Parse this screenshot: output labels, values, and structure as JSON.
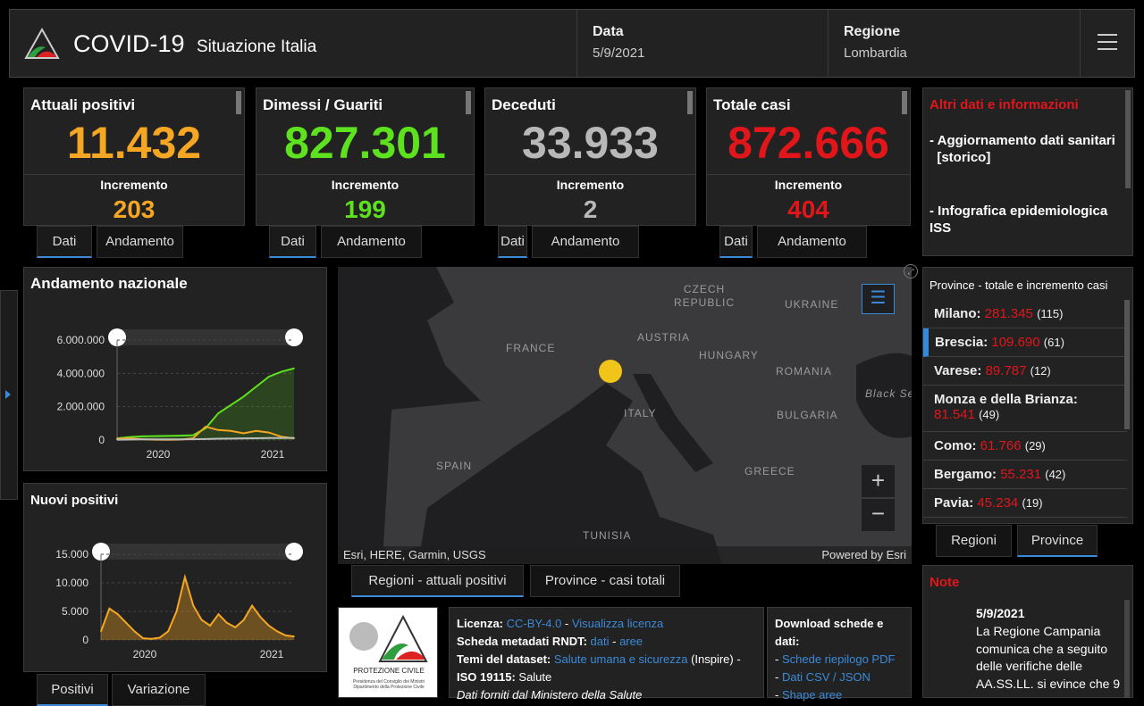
{
  "header": {
    "title": "COVID-19",
    "subtitle": "Situazione Italia",
    "date_label": "Data",
    "date_value": "5/9/2021",
    "region_label": "Regione",
    "region_value": "Lombardia",
    "menu_icon": "hamburger-icon"
  },
  "cards": [
    {
      "label": "Attuali positivi",
      "value": "11.432",
      "inc_label": "Incremento",
      "inc_value": "203",
      "color": "#f5a623",
      "tabs": [
        "Dati",
        "Andamento"
      ]
    },
    {
      "label": "Dimessi / Guariti",
      "value": "827.301",
      "inc_label": "Incremento",
      "inc_value": "199",
      "color": "#5ee11e",
      "tabs": [
        "Dati",
        "Andamento"
      ]
    },
    {
      "label": "Deceduti",
      "value": "33.933",
      "inc_label": "Incremento",
      "inc_value": "2",
      "color": "#b8b8b8",
      "tabs": [
        "Dati",
        "Andamento"
      ]
    },
    {
      "label": "Totale casi",
      "value": "872.666",
      "inc_label": "Incremento",
      "inc_value": "404",
      "color": "#e0161b",
      "tabs": [
        "Dati",
        "Andamento"
      ]
    }
  ],
  "info": {
    "title": "Altri dati e informazioni",
    "item1": "- Aggiornamento dati sanitari",
    "item1_link": "[storico]",
    "item2": "- Infografica epidemiologica ISS"
  },
  "chart_data": [
    {
      "type": "line",
      "title": "Andamento nazionale",
      "ylim": [
        0,
        6000000
      ],
      "yticks": [
        "6.000.000",
        "4.000.000",
        "2.000.000",
        "0"
      ],
      "xticks": [
        "2020",
        "2021"
      ],
      "x": [
        "2020-03",
        "2020-04",
        "2020-05",
        "2020-06",
        "2020-07",
        "2020-08",
        "2020-09",
        "2020-10",
        "2020-11",
        "2020-12",
        "2021-01",
        "2021-02",
        "2021-03",
        "2021-04",
        "2021-05"
      ],
      "series": [
        {
          "color": "#5ee11e",
          "values": [
            100000,
            180000,
            220000,
            235000,
            245000,
            260000,
            290000,
            700000,
            1600000,
            2100000,
            2600000,
            3200000,
            3800000,
            4100000,
            4300000
          ]
        },
        {
          "color": "#f5a623",
          "values": [
            80000,
            100000,
            50000,
            20000,
            15000,
            30000,
            100000,
            800000,
            600000,
            550000,
            400000,
            550000,
            450000,
            200000,
            100000
          ]
        },
        {
          "color": "#bbbbbb",
          "values": [
            20000,
            30000,
            40000,
            40000,
            40000,
            40000,
            50000,
            60000,
            80000,
            90000,
            100000,
            110000,
            120000,
            120000,
            125000
          ]
        }
      ]
    },
    {
      "type": "line",
      "title": "Nuovi positivi",
      "ylim": [
        0,
        15000
      ],
      "yticks": [
        "15.000",
        "10.000",
        "5.000",
        "0"
      ],
      "xticks": [
        "2020",
        "2021"
      ],
      "x": [
        "2020-03",
        "2020-03b",
        "2020-04",
        "2020-04b",
        "2020-05",
        "2020-06",
        "2020-07",
        "2020-08",
        "2020-09",
        "2020-10",
        "2020-10b",
        "2020-11",
        "2020-11b",
        "2020-12",
        "2020-12b",
        "2021-01",
        "2021-01b",
        "2021-02",
        "2021-02b",
        "2021-03",
        "2021-03b",
        "2021-04",
        "2021-04b",
        "2021-05"
      ],
      "series": [
        {
          "color": "#f5a623",
          "values": [
            1500,
            5500,
            4500,
            3000,
            1500,
            300,
            200,
            400,
            1500,
            5000,
            11000,
            6000,
            3500,
            2500,
            4500,
            3000,
            2200,
            3500,
            6000,
            4000,
            2500,
            1500,
            800,
            600
          ]
        }
      ]
    }
  ],
  "chart_tabs": {
    "a": "Positivi",
    "b": "Variazione"
  },
  "map": {
    "labels": [
      "CZECH REPUBLIC",
      "AUSTRIA",
      "FRANCE",
      "HUNGARY",
      "ROMANIA",
      "UKRAINE",
      "ITALY",
      "BULGARIA",
      "SPAIN",
      "GREECE",
      "TUNISIA",
      "Black Sea"
    ],
    "attribution": "Esri, HERE, Garmin, USGS",
    "powered": "Powered by Esri",
    "tabs": [
      "Regioni - attuali positivi",
      "Province - casi totali"
    ],
    "marker_color": "#f0c419"
  },
  "provinces": {
    "title": "Province - totale e incremento casi",
    "rows": [
      {
        "name": "Milano:",
        "total": "281.345",
        "inc": "(115)"
      },
      {
        "name": "Brescia:",
        "total": "109.690",
        "inc": "(61)"
      },
      {
        "name": "Varese:",
        "total": "89.787",
        "inc": "(12)"
      },
      {
        "name": "Monza e della Brianza:",
        "total": "81.541",
        "inc": "(49)"
      },
      {
        "name": "Como:",
        "total": "61.766",
        "inc": "(29)"
      },
      {
        "name": "Bergamo:",
        "total": "55.231",
        "inc": "(42)"
      },
      {
        "name": "Pavia:",
        "total": "45.234",
        "inc": "(19)"
      }
    ],
    "tabs": [
      "Regioni",
      "Province"
    ]
  },
  "note": {
    "title": "Note",
    "date": "5/9/2021",
    "text": "La Regione Campania comunica che a seguito delle verifiche delle AA.SS.LL. si evince che 9"
  },
  "logo": {
    "text": "PROTEZIONE CIVILE",
    "sub": "Presidenza del Consiglio dei Ministri Dipartimento della Protezione Civile"
  },
  "license": {
    "l1a": "Licenza:",
    "l1b": "CC-BY-4.0",
    "l1c": " - ",
    "l1d": "Visualizza licenza",
    "l2a": "Scheda metadati RNDT:",
    "l2b": "dati",
    "l2c": " - ",
    "l2d": "aree",
    "l3a": "Temi del dataset:",
    "l3b": "Salute umana e sicurezza",
    "l3c": " (Inspire) - ",
    "l3d": "ISO 19115:",
    "l3e": " Salute",
    "l4": "Dati forniti dal Ministero della Salute"
  },
  "download": {
    "title": "Download schede e dati:",
    "links": [
      "Schede riepilogo PDF",
      "Dati CSV / JSON",
      "Shape aree"
    ]
  }
}
